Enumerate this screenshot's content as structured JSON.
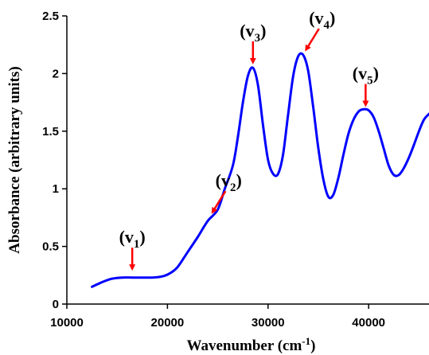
{
  "chart_data": {
    "type": "line",
    "title": "",
    "xlabel": "Wavenumber (cm",
    "xlabel_sup": "-1",
    "xlabel_close": ")",
    "ylabel": "Absorbance (arbitrary units)",
    "xlim": [
      10000,
      46000
    ],
    "ylim": [
      0,
      2.5
    ],
    "x_ticks": [
      10000,
      20000,
      30000,
      40000
    ],
    "x_tick_labels": [
      "10000",
      "20000",
      "30000",
      "40000"
    ],
    "y_ticks": [
      0,
      0.5,
      1,
      1.5,
      2,
      2.5
    ],
    "y_tick_labels": [
      "0",
      "0.5",
      "1",
      "1.5",
      "2",
      "2.5"
    ],
    "grid": false,
    "legend": "none",
    "line_color": "#0000ff",
    "arrow_color": "#ff0000",
    "series": [
      {
        "x": [
          12500,
          13500,
          14500,
          15500,
          16500,
          17500,
          18500,
          19500,
          20300,
          21000,
          22000,
          23000,
          24000,
          25000,
          25700,
          26500,
          27000,
          27500,
          28000,
          28500,
          29000,
          29500,
          30000,
          30500,
          31000,
          31500,
          32000,
          32500,
          33000,
          33500,
          34000,
          34500,
          35000,
          35500,
          36000,
          36500,
          37000,
          37500,
          38000,
          38500,
          39000,
          39500,
          40000,
          40500,
          41000,
          41500,
          42000,
          42500,
          43000,
          43500,
          44000,
          44500,
          45000,
          45500,
          46000
        ],
        "y": [
          0.15,
          0.19,
          0.22,
          0.23,
          0.23,
          0.23,
          0.23,
          0.24,
          0.27,
          0.32,
          0.45,
          0.58,
          0.72,
          0.82,
          1.0,
          1.2,
          1.45,
          1.75,
          1.98,
          2.05,
          1.9,
          1.55,
          1.25,
          1.13,
          1.13,
          1.3,
          1.65,
          1.98,
          2.15,
          2.16,
          2.02,
          1.7,
          1.35,
          1.08,
          0.93,
          0.95,
          1.1,
          1.3,
          1.48,
          1.6,
          1.67,
          1.69,
          1.68,
          1.62,
          1.5,
          1.35,
          1.2,
          1.12,
          1.12,
          1.18,
          1.27,
          1.38,
          1.5,
          1.6,
          1.65
        ]
      }
    ],
    "annotations": [
      {
        "label": "v",
        "sub": "1",
        "x": 16500,
        "y": 0.31,
        "dir": "down"
      },
      {
        "label": "v",
        "sub": "2",
        "x": 24500,
        "y": 0.8,
        "dir": "down-left"
      },
      {
        "label": "v",
        "sub": "3",
        "x": 28500,
        "y": 2.1,
        "dir": "down"
      },
      {
        "label": "v",
        "sub": "4",
        "x": 33800,
        "y": 2.21,
        "dir": "down-left"
      },
      {
        "label": "v",
        "sub": "5",
        "x": 39700,
        "y": 1.73,
        "dir": "down"
      }
    ]
  }
}
